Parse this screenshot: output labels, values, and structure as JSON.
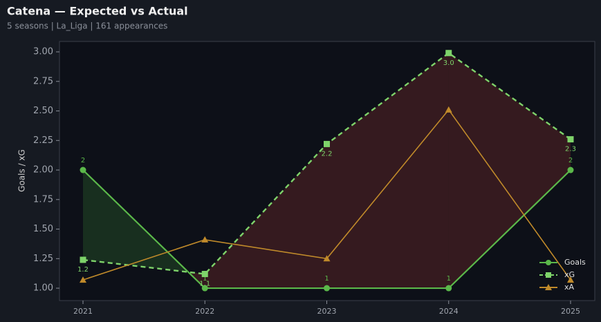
{
  "chart_data": {
    "type": "line",
    "title": "Catena — Expected vs Actual",
    "subtitle": "5 seasons | La_Liga | 161 appearances",
    "y_label": "Goals / xG",
    "categories": [
      "2021",
      "2022",
      "2023",
      "2024",
      "2025"
    ],
    "series": [
      {
        "name": "Goals",
        "color": "#5bb84a",
        "values": [
          2,
          1,
          1,
          1,
          2
        ]
      },
      {
        "name": "xG",
        "color": "#7ed36a",
        "values": [
          1.24,
          1.12,
          2.22,
          2.99,
          2.26
        ],
        "value_labels": [
          "1.2",
          "1.1",
          "2.2",
          "3.0",
          "2.3"
        ]
      },
      {
        "name": "xA",
        "color": "#c08a2a",
        "values": [
          1.07,
          1.41,
          1.25,
          2.51,
          1.07
        ]
      }
    ],
    "ylim": [
      0.895,
      3.088
    ],
    "yticks": [
      {
        "value": 1,
        "label": "1.00"
      },
      {
        "value": 1.25,
        "label": "1.25"
      },
      {
        "value": 1.5,
        "label": "1.50"
      },
      {
        "value": 1.75,
        "label": "1.75"
      },
      {
        "value": 2,
        "label": "2.00"
      },
      {
        "value": 2.25,
        "label": "2.25"
      },
      {
        "value": 2.5,
        "label": "2.50"
      },
      {
        "value": 2.75,
        "label": "2.75"
      },
      {
        "value": 3,
        "label": "3.00"
      }
    ],
    "legend": "lower right"
  }
}
